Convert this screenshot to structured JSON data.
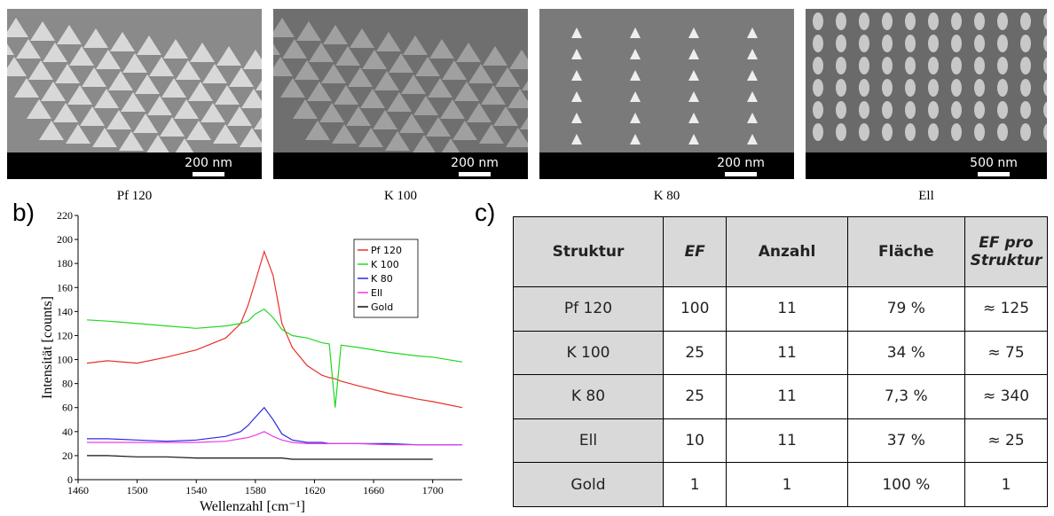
{
  "panel_a": {
    "label": "a)",
    "images": [
      {
        "caption": "Pf 120",
        "scale": "200 nm"
      },
      {
        "caption": "K 100",
        "scale": "200 nm"
      },
      {
        "caption": "K 80",
        "scale": "200 nm"
      },
      {
        "caption": "Ell",
        "scale": "500 nm"
      }
    ]
  },
  "chart_data": {
    "type": "line",
    "panel_label": "b)",
    "x_label": "Wellenzahl [cm⁻¹]",
    "y_label": "Intensität [counts]",
    "x": [
      1466,
      1480,
      1500,
      1520,
      1540,
      1560,
      1570,
      1575,
      1580,
      1586,
      1592,
      1598,
      1605,
      1615,
      1625,
      1630,
      1634,
      1638,
      1650,
      1670,
      1690,
      1700,
      1720
    ],
    "series": [
      {
        "name": "Pf 120",
        "color": "#e8302a",
        "values": [
          97,
          99,
          97,
          102,
          108,
          118,
          130,
          145,
          165,
          190,
          170,
          130,
          110,
          95,
          87,
          85,
          84,
          82,
          78,
          72,
          67,
          65,
          60
        ]
      },
      {
        "name": "K 100",
        "color": "#22d822",
        "values": [
          133,
          132,
          130,
          128,
          126,
          128,
          130,
          132,
          138,
          142,
          135,
          125,
          120,
          118,
          114,
          113,
          60,
          112,
          110,
          106,
          103,
          102,
          98
        ]
      },
      {
        "name": "K 80",
        "color": "#2a2ae0",
        "values": [
          34,
          34,
          33,
          32,
          33,
          36,
          40,
          45,
          52,
          60,
          50,
          38,
          33,
          31,
          31,
          30,
          30,
          30,
          30,
          30,
          29,
          29,
          29
        ]
      },
      {
        "name": "Ell",
        "color": "#e83ce8",
        "values": [
          31,
          31,
          31,
          31,
          31,
          32,
          34,
          35,
          37,
          40,
          36,
          33,
          31,
          30,
          30,
          30,
          30,
          30,
          30,
          29,
          29,
          29,
          29
        ]
      },
      {
        "name": "Gold",
        "color": "#111111",
        "values": [
          20,
          20,
          19,
          19,
          18,
          18,
          18,
          18,
          18,
          18,
          18,
          18,
          17,
          17,
          17,
          17,
          17,
          17,
          17,
          17,
          17,
          17,
          null
        ]
      }
    ],
    "xlim": [
      1460,
      1720
    ],
    "xticks": [
      1460,
      1500,
      1540,
      1580,
      1620,
      1660,
      1700
    ],
    "ylim": [
      0,
      220
    ],
    "yticks": [
      0,
      20,
      40,
      60,
      80,
      100,
      120,
      140,
      160,
      180,
      200,
      220
    ],
    "legend": "upper right"
  },
  "panel_c": {
    "label": "c)",
    "table": {
      "header": [
        "Struktur",
        "EF",
        "Anzahl",
        "Fläche",
        "EF pro Struktur"
      ],
      "rows": [
        [
          "Pf 120",
          "100",
          "11",
          "79 %",
          "≈ 125"
        ],
        [
          "K 100",
          "25",
          "11",
          "34 %",
          "≈ 75"
        ],
        [
          "K 80",
          "25",
          "11",
          "7,3 %",
          "≈ 340"
        ],
        [
          "Ell",
          "10",
          "11",
          "37 %",
          "≈ 25"
        ],
        [
          "Gold",
          "1",
          "1",
          "100 %",
          "1"
        ]
      ]
    }
  }
}
